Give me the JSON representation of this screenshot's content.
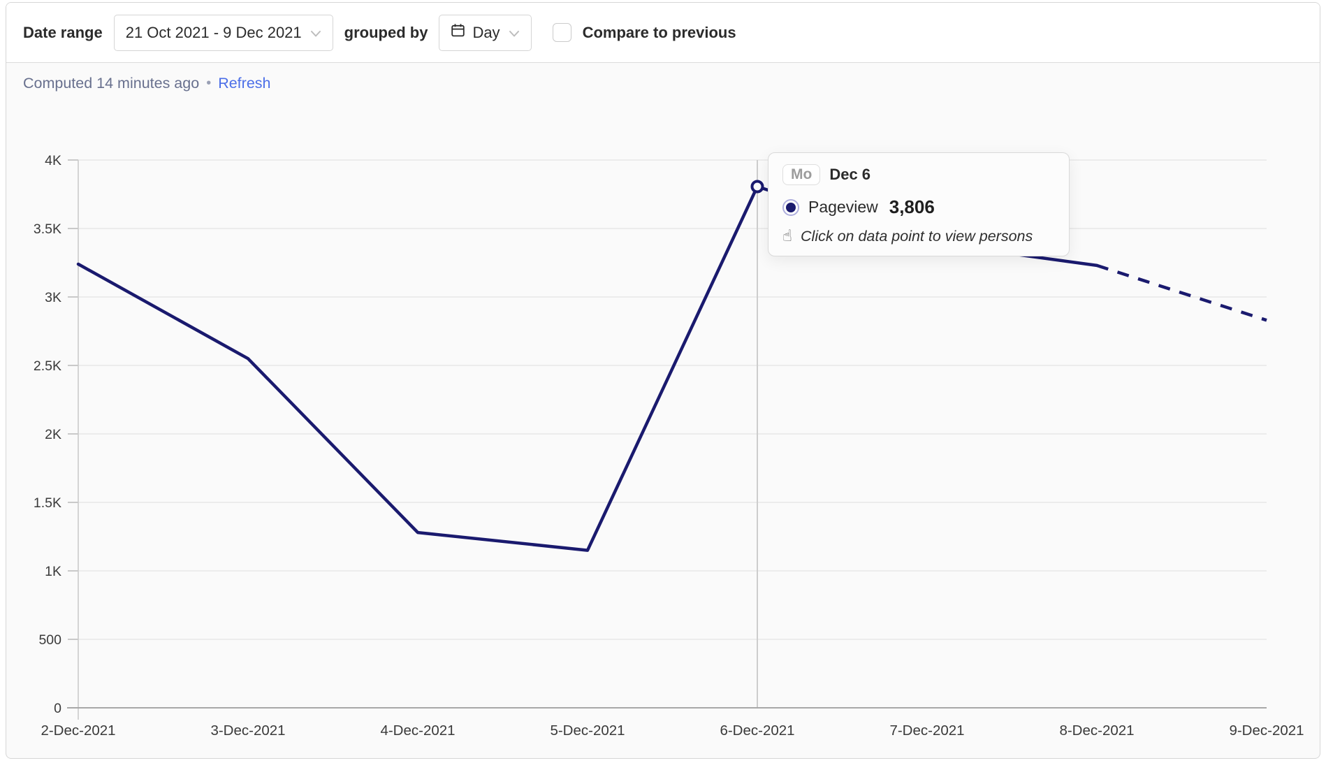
{
  "toolbar": {
    "date_range_label": "Date range",
    "date_range_value": "21 Oct 2021 - 9 Dec 2021",
    "grouped_by_label": "grouped by",
    "interval_value": "Day",
    "compare_label": "Compare to previous",
    "compare_checked": false
  },
  "status": {
    "computed_text": "Computed 14 minutes ago",
    "separator": "•",
    "refresh_label": "Refresh"
  },
  "tooltip": {
    "day_badge": "Mo",
    "date_label": "Dec 6",
    "series_name": "Pageview",
    "value": "3,806",
    "hint": "Click on data point to view persons"
  },
  "icons": {
    "pointer_hand": "☝",
    "dropdown_chevron": "chevron-down",
    "calendar": "calendar"
  },
  "colors": {
    "series": "#1a1a6e",
    "link": "#4c6fe8",
    "muted_text": "#68708e",
    "grid": "#ececec",
    "axis_x": "#a8a8a8",
    "axis_y": "#d4d4d4",
    "tick": "#c9c9c9",
    "crosshair": "#cdcdcd",
    "marker_ring": "#aeaedd",
    "card_bg": "#fafafa",
    "toolbar_bg": "#ffffff"
  },
  "chart_data": {
    "type": "line",
    "title": "",
    "xlabel": "",
    "ylabel": "",
    "x": [
      "2-Dec-2021",
      "3-Dec-2021",
      "4-Dec-2021",
      "5-Dec-2021",
      "6-Dec-2021",
      "7-Dec-2021",
      "8-Dec-2021",
      "9-Dec-2021"
    ],
    "series": [
      {
        "name": "Pageview",
        "color": "#1a1a6e",
        "values": [
          3240,
          2550,
          1280,
          1150,
          3806,
          3400,
          3230,
          2830
        ],
        "dashed_from_index": 6
      }
    ],
    "ylim": [
      0,
      4000
    ],
    "yticks": [
      0,
      500,
      1000,
      1500,
      2000,
      2500,
      3000,
      3500,
      4000
    ],
    "ytick_labels": [
      "0",
      "500",
      "1K",
      "1.5K",
      "2K",
      "2.5K",
      "3K",
      "3.5K",
      "4K"
    ],
    "grid": true,
    "legend_position": "none",
    "highlight": {
      "index": 4,
      "crosshair": true,
      "marker": "open-circle"
    }
  }
}
